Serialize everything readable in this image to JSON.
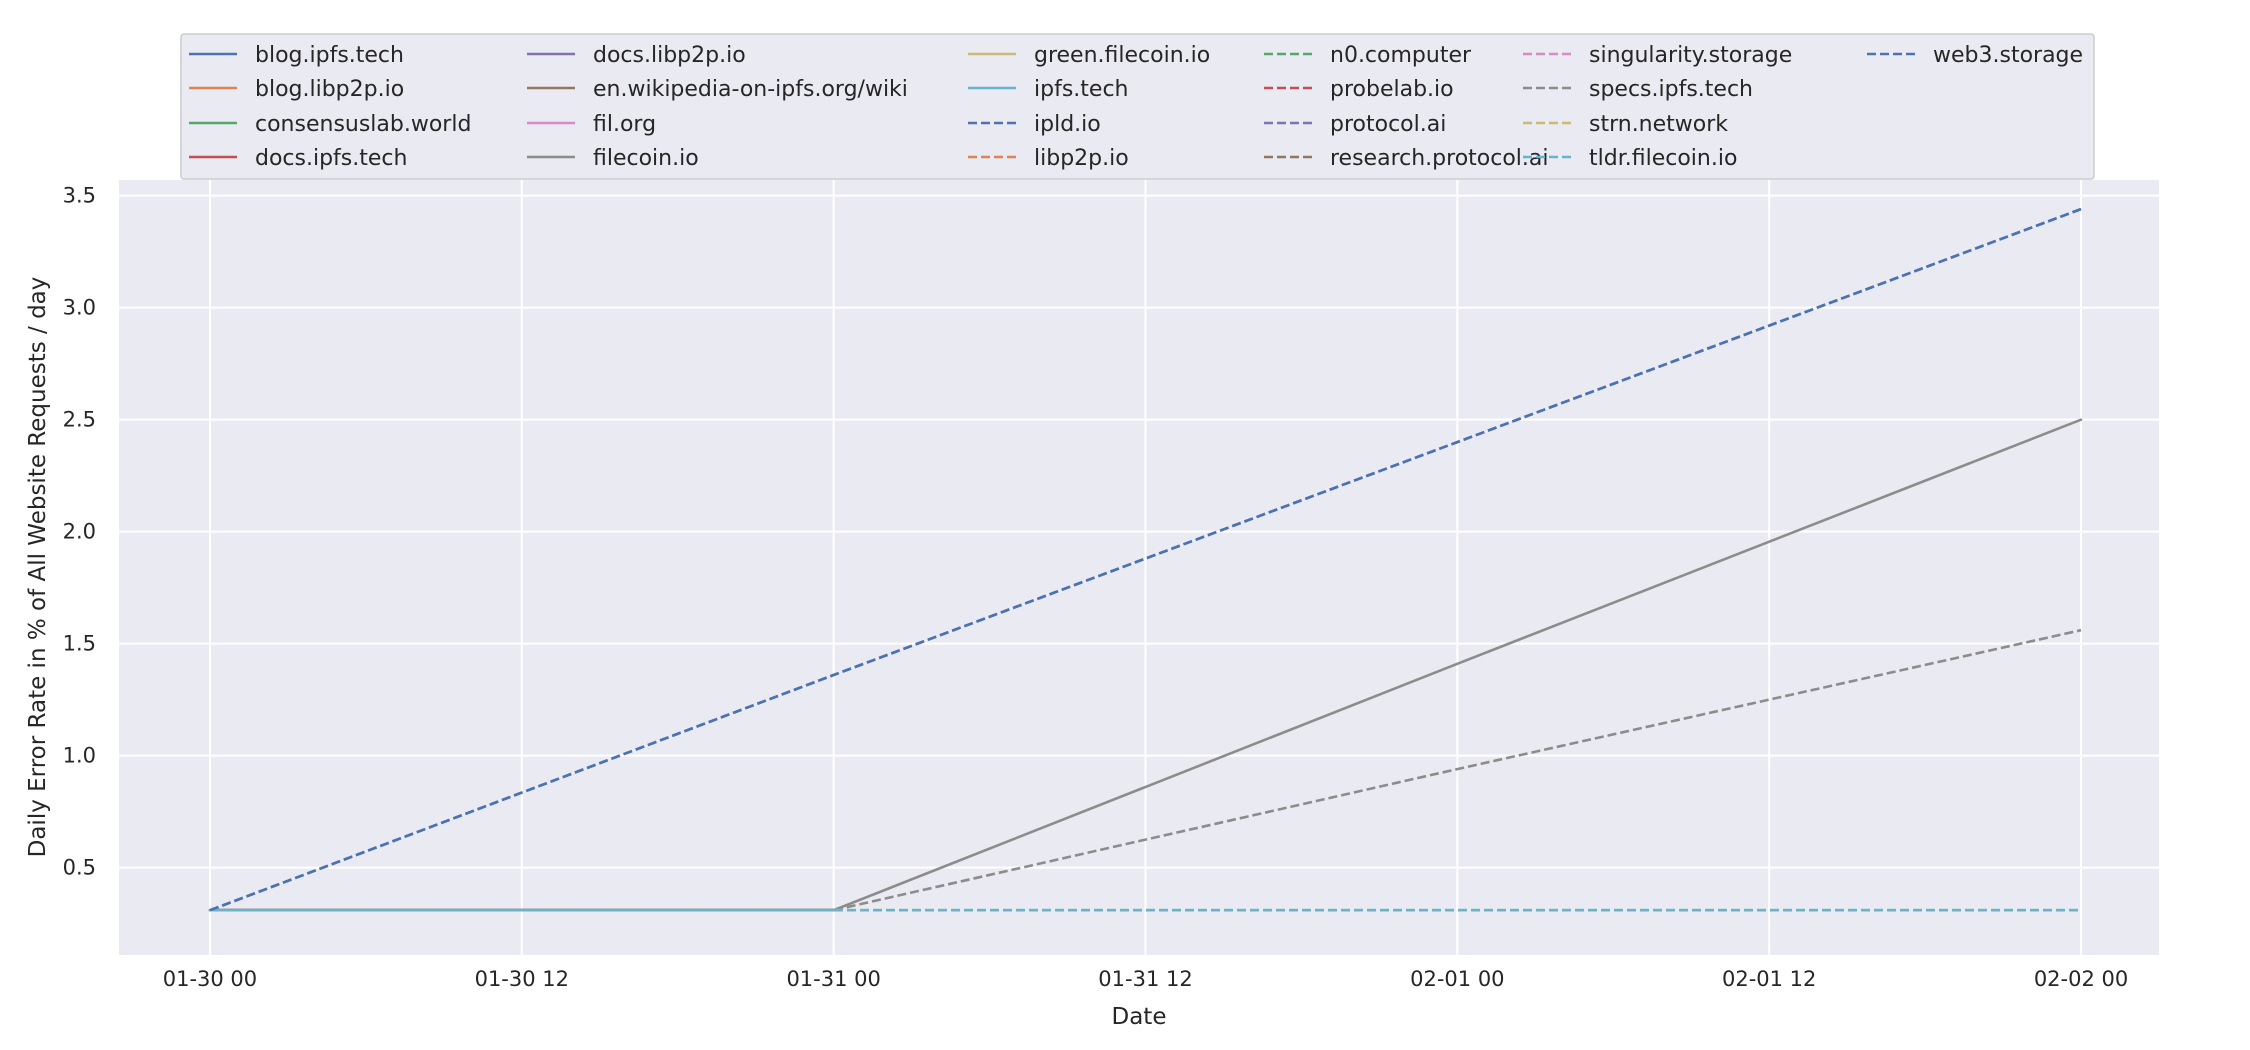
{
  "chart_data": {
    "type": "line",
    "title": "",
    "xlabel": "Date",
    "ylabel": "Daily Error Rate in % of All Website Requests / day",
    "x": [
      "2023-01-30",
      "2023-01-31",
      "2023-02-01",
      "2023-02-02"
    ],
    "x_tick_labels": [
      "01-30 00",
      "01-30 12",
      "01-31 00",
      "01-31 12",
      "02-01 00",
      "02-01 12",
      "02-02 00"
    ],
    "y_ticks": [
      0.5,
      1.0,
      1.5,
      2.0,
      2.5,
      3.0,
      3.5
    ],
    "y_tick_labels": [
      "0.5",
      "1.0",
      "1.5",
      "2.0",
      "2.5",
      "3.0",
      "3.5"
    ],
    "ylim": [
      0.11,
      3.57
    ],
    "xlim": [
      "2023-01-29 20:30",
      "2023-02-02 03:00"
    ],
    "grid": true,
    "legend": "top-center",
    "background": "#eaeaf2",
    "series": [
      {
        "name": "blog.ipfs.tech",
        "color": "#4c72b0",
        "dash": "solid",
        "values": [
          0.31,
          0.31,
          null,
          null
        ]
      },
      {
        "name": "blog.libp2p.io",
        "color": "#dd8452",
        "dash": "solid",
        "values": [
          0.31,
          0.31,
          null,
          null
        ]
      },
      {
        "name": "consensuslab.world",
        "color": "#55a868",
        "dash": "solid",
        "values": [
          0.31,
          0.31,
          null,
          null
        ]
      },
      {
        "name": "docs.ipfs.tech",
        "color": "#c44e52",
        "dash": "solid",
        "values": [
          0.31,
          0.31,
          null,
          null
        ]
      },
      {
        "name": "docs.libp2p.io",
        "color": "#8172b3",
        "dash": "solid",
        "values": [
          0.31,
          0.31,
          null,
          null
        ]
      },
      {
        "name": "en.wikipedia-on-ipfs.org/wiki",
        "color": "#937860",
        "dash": "solid",
        "values": [
          0.31,
          0.31,
          null,
          null
        ]
      },
      {
        "name": "fil.org",
        "color": "#da8bc3",
        "dash": "solid",
        "values": [
          0.31,
          0.31,
          null,
          null
        ]
      },
      {
        "name": "filecoin.io",
        "color": "#8c8c8c",
        "dash": "solid",
        "values": [
          0.31,
          0.31,
          1.41,
          2.5
        ]
      },
      {
        "name": "green.filecoin.io",
        "color": "#ccb974",
        "dash": "solid",
        "values": [
          0.31,
          0.31,
          null,
          null
        ]
      },
      {
        "name": "ipfs.tech",
        "color": "#64b5cd",
        "dash": "solid",
        "values": [
          0.31,
          0.31,
          null,
          null
        ]
      },
      {
        "name": "ipld.io",
        "color": "#4c72b0",
        "dash": "dashed",
        "values": [
          0.31,
          1.36,
          2.4,
          3.44
        ]
      },
      {
        "name": "libp2p.io",
        "color": "#dd8452",
        "dash": "dashed",
        "values": [
          0.31,
          0.31,
          null,
          null
        ]
      },
      {
        "name": "n0.computer",
        "color": "#55a868",
        "dash": "dashed",
        "values": [
          0.31,
          0.31,
          null,
          null
        ]
      },
      {
        "name": "probelab.io",
        "color": "#c44e52",
        "dash": "dashed",
        "values": [
          0.31,
          0.31,
          null,
          null
        ]
      },
      {
        "name": "protocol.ai",
        "color": "#8172b3",
        "dash": "dashed",
        "values": [
          0.31,
          0.31,
          null,
          null
        ]
      },
      {
        "name": "research.protocol.ai",
        "color": "#937860",
        "dash": "dashed",
        "values": [
          0.31,
          0.31,
          null,
          null
        ]
      },
      {
        "name": "singularity.storage",
        "color": "#da8bc3",
        "dash": "dashed",
        "values": [
          0.31,
          0.31,
          null,
          null
        ]
      },
      {
        "name": "specs.ipfs.tech",
        "color": "#8c8c8c",
        "dash": "dashed",
        "values": [
          0.31,
          0.31,
          0.94,
          1.56
        ]
      },
      {
        "name": "strn.network",
        "color": "#ccb974",
        "dash": "dashed",
        "values": [
          0.31,
          0.31,
          0.31,
          0.31
        ]
      },
      {
        "name": "tldr.filecoin.io",
        "color": "#64b5cd",
        "dash": "dashed",
        "values": [
          0.31,
          0.31,
          0.31,
          0.31
        ]
      },
      {
        "name": "web3.storage",
        "color": "#4c72b0",
        "dash": "dashed",
        "values": [
          0.31,
          1.36,
          2.4,
          3.44
        ]
      }
    ]
  }
}
